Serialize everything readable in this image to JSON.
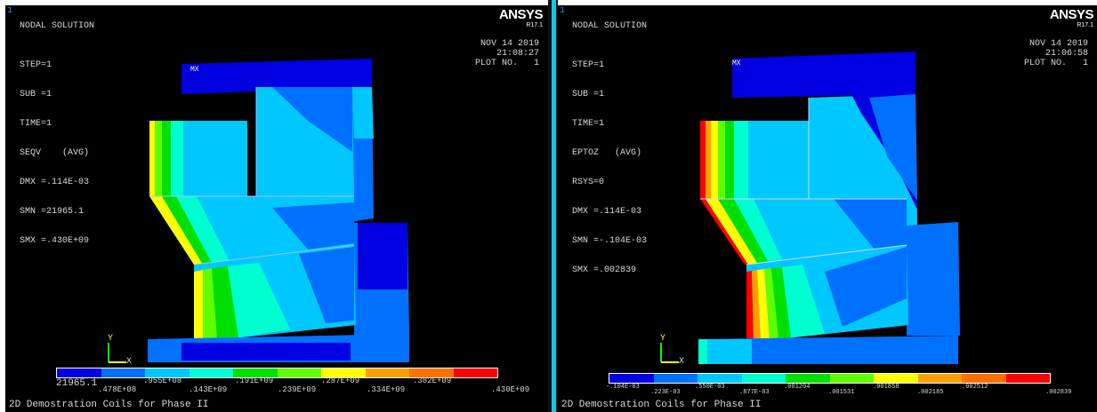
{
  "left": {
    "window_number": "1",
    "title": "NODAL SOLUTION",
    "logo": "ANSYS",
    "version": "R17.1",
    "date": "NOV 14 2019",
    "time": "21:08:27",
    "plot_no": "PLOT NO.   1",
    "stats": [
      "STEP=1",
      "SUB =1",
      "TIME=1",
      "SEQV    (AVG)",
      "DMX =.114E-03",
      "SMN =21965.1",
      "SMX =.430E+09"
    ],
    "mx_label": "MX",
    "axis_y": "Y",
    "axis_x": "X",
    "legend_colors": [
      "#0000e0",
      "#0070ff",
      "#00c8ff",
      "#00ffd0",
      "#00e000",
      "#60ff00",
      "#ffff00",
      "#ffa000",
      "#ff7000",
      "#ff0000"
    ],
    "legend_top_labels": [
      ".478E+08",
      ".143E+09",
      ".239E+09",
      ".334E+09",
      ".430E+09"
    ],
    "legend_bottom_labels": [
      "21965.1",
      ".955E+08",
      ".191E+09",
      ".287E+09",
      ".382E+09"
    ],
    "footer": "2D Demostration Coils for Phase II"
  },
  "right": {
    "window_number": "1",
    "title": "NODAL SOLUTION",
    "logo": "ANSYS",
    "version": "R17.1",
    "date": "NOV 14 2019",
    "time": "21:06:58",
    "plot_no": "PLOT NO.   1",
    "stats": [
      "STEP=1",
      "SUB =1",
      "TIME=1",
      "EPTOZ   (AVG)",
      "RSYS=0",
      "DMX =.114E-03",
      "SMN =-.104E-03",
      "SMX =.002839"
    ],
    "mx_label": "MX",
    "axis_y": "Y",
    "axis_x": "X",
    "legend_colors": [
      "#0000e0",
      "#0070ff",
      "#00c8ff",
      "#00ffd0",
      "#00e000",
      "#60ff00",
      "#ffff00",
      "#ffa000",
      "#ff7000",
      "#ff0000"
    ],
    "legend_labels": [
      "-.104E-03",
      ".223E-03",
      ".550E-03",
      ".877E-03",
      ".001204",
      ".001531",
      ".001858",
      ".002185",
      ".002512",
      ".002839"
    ],
    "footer": "2D Demostration Coils for Phase II"
  }
}
